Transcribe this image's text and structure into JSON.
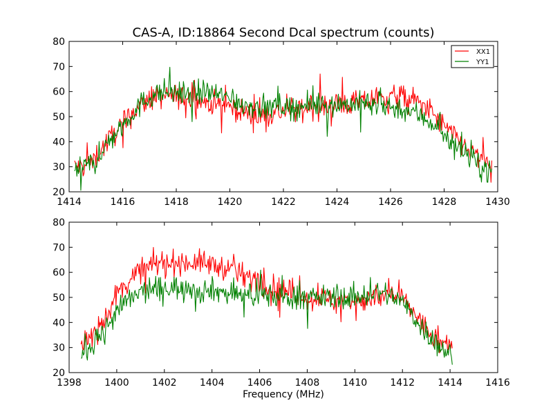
{
  "chart_data": [
    {
      "type": "line",
      "title": "CAS-A, ID:18864 Second Dcal spectrum (counts)",
      "xlabel": "",
      "ylabel": "",
      "xlim": [
        1414,
        1430
      ],
      "ylim": [
        20,
        80
      ],
      "xticks": [
        "1414",
        "1416",
        "1418",
        "1420",
        "1422",
        "1424",
        "1426",
        "1428",
        "1430"
      ],
      "yticks": [
        "20",
        "30",
        "40",
        "50",
        "60",
        "70",
        "80"
      ],
      "grid": false,
      "legend_position": "top-right",
      "series": [
        {
          "name": "XX1",
          "color": "#ff0000",
          "x": [
            1414.2,
            1414.5,
            1415.0,
            1415.5,
            1416.0,
            1416.5,
            1417.0,
            1417.5,
            1418.0,
            1418.5,
            1419.0,
            1419.5,
            1420.0,
            1420.5,
            1421.0,
            1421.5,
            1422.0,
            1422.5,
            1423.0,
            1423.5,
            1424.0,
            1424.5,
            1425.0,
            1425.5,
            1426.0,
            1426.5,
            1427.0,
            1427.5,
            1428.0,
            1428.5,
            1429.0,
            1429.5,
            1429.8
          ],
          "y": [
            30,
            30,
            34,
            41,
            47,
            53,
            57,
            58,
            58,
            57,
            56,
            55,
            54,
            52,
            50,
            51,
            52,
            53,
            54,
            54,
            55,
            55,
            56,
            57,
            58,
            58,
            56,
            52,
            46,
            41,
            36,
            32,
            30
          ]
        },
        {
          "name": "YY1",
          "color": "#008000",
          "x": [
            1414.2,
            1414.5,
            1415.0,
            1415.5,
            1416.0,
            1416.5,
            1417.0,
            1417.5,
            1418.0,
            1418.5,
            1419.0,
            1419.5,
            1420.0,
            1420.5,
            1421.0,
            1421.5,
            1422.0,
            1422.5,
            1423.0,
            1423.5,
            1424.0,
            1424.5,
            1425.0,
            1425.5,
            1426.0,
            1426.5,
            1427.0,
            1427.5,
            1428.0,
            1428.5,
            1429.0,
            1429.5,
            1429.8
          ],
          "y": [
            28,
            29,
            33,
            40,
            47,
            53,
            58,
            60,
            60,
            59,
            60,
            59,
            57,
            55,
            54,
            54,
            54,
            54,
            54,
            55,
            55,
            55,
            55,
            55,
            54,
            53,
            51,
            48,
            43,
            38,
            33,
            29,
            28
          ]
        }
      ]
    },
    {
      "type": "line",
      "title": "",
      "xlabel": "Frequency (MHz)",
      "ylabel": "",
      "xlim": [
        1398,
        1416
      ],
      "ylim": [
        20,
        80
      ],
      "xticks": [
        "1398",
        "1400",
        "1402",
        "1404",
        "1406",
        "1408",
        "1410",
        "1412",
        "1414",
        "1416"
      ],
      "yticks": [
        "20",
        "30",
        "40",
        "50",
        "60",
        "70",
        "80"
      ],
      "grid": false,
      "series": [
        {
          "name": "XX1",
          "color": "#ff0000",
          "x": [
            1398.5,
            1399.0,
            1399.5,
            1400.0,
            1400.5,
            1401.0,
            1401.5,
            1402.0,
            1402.5,
            1403.0,
            1403.5,
            1404.0,
            1404.5,
            1405.0,
            1405.5,
            1406.0,
            1406.5,
            1407.0,
            1407.5,
            1408.0,
            1408.5,
            1409.0,
            1409.5,
            1410.0,
            1410.5,
            1411.0,
            1411.5,
            1412.0,
            1412.5,
            1413.0,
            1413.5,
            1414.1
          ],
          "y": [
            31,
            35,
            42,
            51,
            57,
            61,
            63,
            64,
            64,
            64,
            64,
            63,
            62,
            60,
            58,
            57,
            55,
            53,
            51,
            50,
            50,
            49,
            49,
            49,
            49,
            50,
            51,
            49,
            44,
            37,
            32,
            30
          ]
        },
        {
          "name": "YY1",
          "color": "#008000",
          "x": [
            1398.5,
            1399.0,
            1399.5,
            1400.0,
            1400.5,
            1401.0,
            1401.5,
            1402.0,
            1402.5,
            1403.0,
            1403.5,
            1404.0,
            1404.5,
            1405.0,
            1405.5,
            1406.0,
            1406.5,
            1407.0,
            1407.5,
            1408.0,
            1408.5,
            1409.0,
            1409.5,
            1410.0,
            1410.5,
            1411.0,
            1411.5,
            1412.0,
            1412.5,
            1413.0,
            1413.5,
            1414.1
          ],
          "y": [
            28,
            32,
            37,
            44,
            49,
            52,
            53,
            54,
            54,
            54,
            53,
            53,
            52,
            51,
            51,
            51,
            51,
            50,
            50,
            50,
            50,
            50,
            50,
            50,
            51,
            52,
            51,
            48,
            42,
            36,
            31,
            27
          ]
        }
      ]
    }
  ]
}
